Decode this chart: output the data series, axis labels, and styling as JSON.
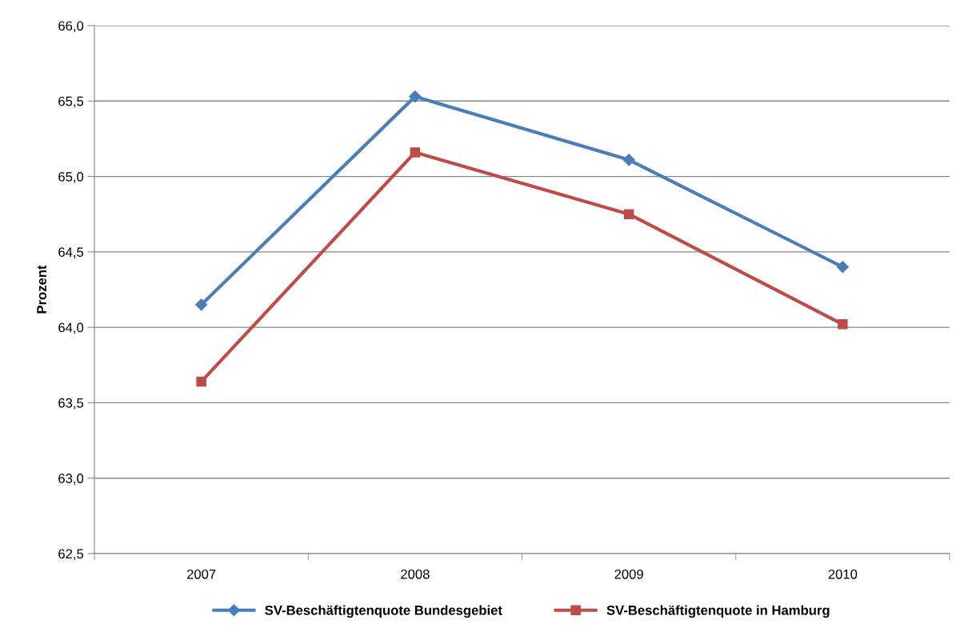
{
  "chart_data": {
    "type": "line",
    "ylabel": "Prozent",
    "categories": [
      "2007",
      "2008",
      "2009",
      "2010"
    ],
    "series": [
      {
        "name": "SV-Beschäftigtenquote Bundesgebiet",
        "color": "#4a7ebb",
        "marker": "diamond",
        "values": [
          64.15,
          65.53,
          65.11,
          64.4
        ]
      },
      {
        "name": "SV-Beschäftigtenquote in Hamburg",
        "color": "#be4b48",
        "marker": "square",
        "values": [
          63.64,
          65.16,
          64.75,
          64.02
        ]
      }
    ],
    "ylim": [
      62.5,
      66.0
    ],
    "yticks": [
      {
        "value": 62.5,
        "label": "62,5"
      },
      {
        "value": 63.0,
        "label": "63,0"
      },
      {
        "value": 63.5,
        "label": "63,5"
      },
      {
        "value": 64.0,
        "label": "64,0"
      },
      {
        "value": 64.5,
        "label": "64,5"
      },
      {
        "value": 65.0,
        "label": "65,0"
      },
      {
        "value": 65.5,
        "label": "65,5"
      },
      {
        "value": 66.0,
        "label": "66,0"
      }
    ],
    "grid": "y",
    "legend": "bottom",
    "line_style": "solid"
  }
}
